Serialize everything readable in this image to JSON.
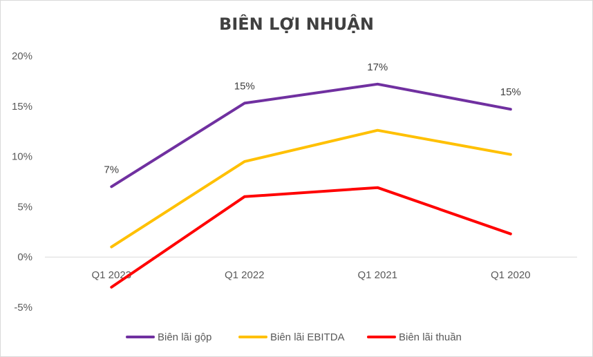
{
  "chart_data": {
    "type": "line",
    "title": "BIÊN LỢI NHUẬN",
    "xlabel": "",
    "ylabel": "",
    "categories": [
      "Q1 2023",
      "Q1 2022",
      "Q1 2021",
      "Q1 2020"
    ],
    "ylim": [
      -5,
      20
    ],
    "yticks": [
      -5,
      0,
      5,
      10,
      15,
      20
    ],
    "ytick_labels": [
      "-5%",
      "0%",
      "5%",
      "10%",
      "15%",
      "20%"
    ],
    "grid": false,
    "legend": "bottom",
    "series": [
      {
        "name": "Biên lãi gộp",
        "values": [
          7.0,
          15.3,
          17.2,
          14.7
        ],
        "color": "#7030A0",
        "data_labels": [
          "7%",
          "15%",
          "17%",
          "15%"
        ]
      },
      {
        "name": "Biên lãi EBITDA",
        "values": [
          1.0,
          9.5,
          12.6,
          10.2
        ],
        "color": "#FFC000",
        "data_labels": []
      },
      {
        "name": "Biên lãi thuần",
        "values": [
          -3.0,
          6.0,
          6.9,
          2.3
        ],
        "color": "#FF0000",
        "data_labels": []
      }
    ]
  }
}
